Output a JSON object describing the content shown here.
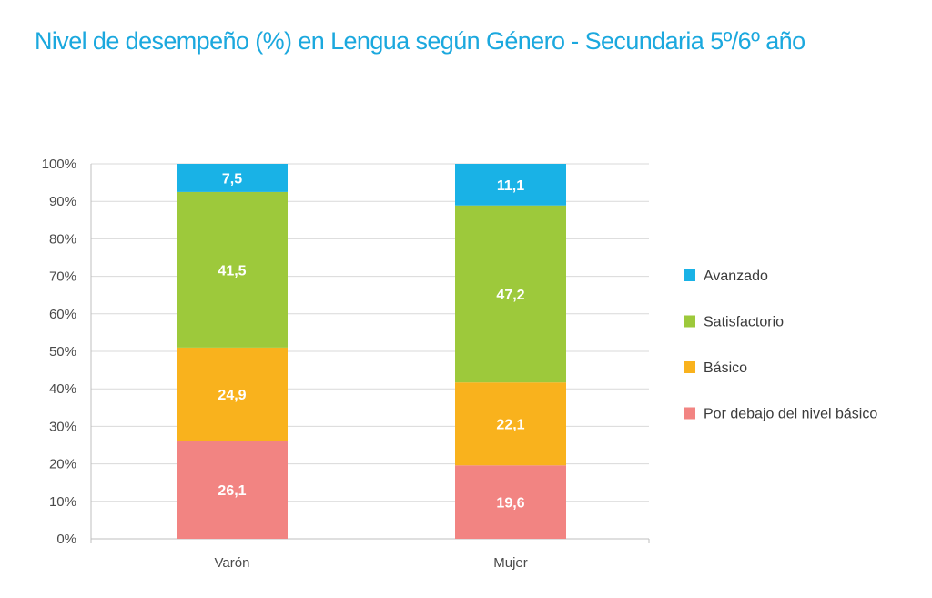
{
  "title": "Nivel de desempeño (%) en Lengua según Género  - Secundaria 5º/6º año",
  "chart_data": {
    "type": "bar",
    "stacked": true,
    "categories": [
      "Varón",
      "Mujer"
    ],
    "series": [
      {
        "name": "Por debajo del nivel básico",
        "values": [
          26.1,
          19.6
        ],
        "labels": [
          "26,1",
          "19,6"
        ],
        "color": "#f28482"
      },
      {
        "name": "Básico",
        "values": [
          24.9,
          22.1
        ],
        "labels": [
          "24,9",
          "22,1"
        ],
        "color": "#f9b21d"
      },
      {
        "name": "Satisfactorio",
        "values": [
          41.5,
          47.2
        ],
        "labels": [
          "41,5",
          "47,2"
        ],
        "color": "#9dc93b"
      },
      {
        "name": "Avanzado",
        "values": [
          7.5,
          11.1
        ],
        "labels": [
          "7,5",
          "11,1"
        ],
        "color": "#19b2e6"
      }
    ],
    "legend_order": [
      "Avanzado",
      "Satisfactorio",
      "Básico",
      "Por debajo del nivel básico"
    ],
    "yticks": [
      "0%",
      "10%",
      "20%",
      "30%",
      "40%",
      "50%",
      "60%",
      "70%",
      "80%",
      "90%",
      "100%"
    ],
    "ylim": [
      0,
      100
    ],
    "grid": true,
    "legend_position": "right"
  }
}
